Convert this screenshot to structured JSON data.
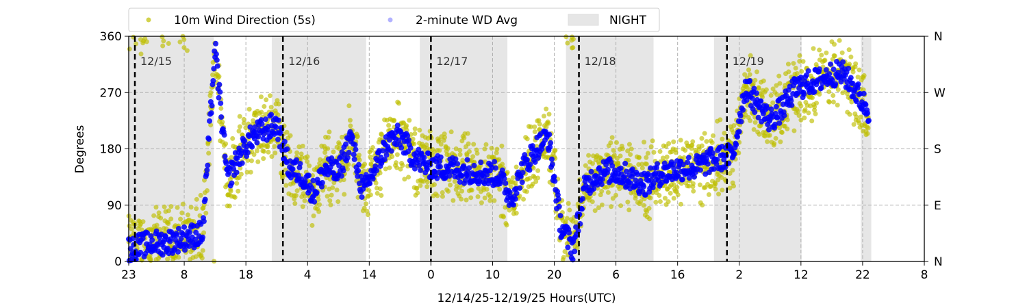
{
  "chart_data": {
    "type": "scatter",
    "xlabel": "12/14/25-12/19/25  Hours(UTC)",
    "ylabel": "Degrees",
    "ylim": [
      0,
      360
    ],
    "xlim_hours_from_start": [
      0,
      129
    ],
    "x_start_hour_utc": 23,
    "x_ticks": [
      {
        "h": 0,
        "label": "23"
      },
      {
        "h": 9,
        "label": "8"
      },
      {
        "h": 19,
        "label": "18"
      },
      {
        "h": 29,
        "label": "4"
      },
      {
        "h": 39,
        "label": "14"
      },
      {
        "h": 49,
        "label": "0"
      },
      {
        "h": 59,
        "label": "10"
      },
      {
        "h": 69,
        "label": "20"
      },
      {
        "h": 79,
        "label": "6"
      },
      {
        "h": 89,
        "label": "16"
      },
      {
        "h": 99,
        "label": "2"
      },
      {
        "h": 109,
        "label": "12"
      },
      {
        "h": 119,
        "label": "22"
      },
      {
        "h": 129,
        "label": "8"
      }
    ],
    "y_ticks": [
      0,
      90,
      180,
      270,
      360
    ],
    "y_ticks_right": [
      {
        "v": 0,
        "label": "N"
      },
      {
        "v": 90,
        "label": "E"
      },
      {
        "v": 180,
        "label": "S"
      },
      {
        "v": 270,
        "label": "W"
      },
      {
        "v": 360,
        "label": "N"
      }
    ],
    "grid": true,
    "legend": {
      "placement": "top",
      "entries": [
        "10m Wind Direction (5s)",
        "2-minute WD Avg",
        "NIGHT"
      ]
    },
    "day_markers": [
      {
        "h": 1,
        "label": "12/15"
      },
      {
        "h": 25,
        "label": "12/16"
      },
      {
        "h": 49,
        "label": "12/17"
      },
      {
        "h": 73,
        "label": "12/18"
      },
      {
        "h": 97,
        "label": "12/19"
      }
    ],
    "night_bands_hours": [
      [
        0,
        13.8
      ],
      [
        23.2,
        38.5
      ],
      [
        47.2,
        61.4
      ],
      [
        70.9,
        85.1
      ],
      [
        94.9,
        109.1
      ],
      [
        118.7,
        120.4
      ]
    ],
    "series": [
      {
        "name": "2-minute WD Avg",
        "color": "#0000ff",
        "x_step_hours": 2,
        "values": [
          20,
          25,
          30,
          30,
          35,
          40,
          45,
          340,
          130,
          170,
          200,
          210,
          220,
          150,
          140,
          110,
          150,
          140,
          200,
          110,
          150,
          190,
          200,
          170,
          155,
          150,
          150,
          145,
          145,
          140,
          140,
          100,
          150,
          180,
          200,
          60,
          20,
          120,
          140,
          145,
          140,
          130,
          125,
          140,
          145,
          150,
          150,
          160,
          165,
          170,
          280,
          250,
          225,
          245,
          275,
          285,
          290,
          300,
          300,
          270,
          240
        ]
      },
      {
        "name": "10m Wind Direction (5s)",
        "color": "#bfbf00",
        "spread_deg": 45
      }
    ],
    "colors": {
      "night": "#e6e6e6",
      "yellow": "#bfbf00",
      "blue": "#0000ff"
    }
  }
}
